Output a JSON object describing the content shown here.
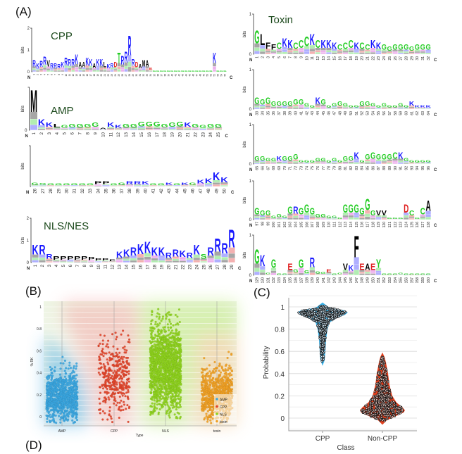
{
  "panel_labels": {
    "A": "(A)",
    "B": "(B)",
    "C": "(C)",
    "D": "(D)"
  },
  "logo_common": {
    "ylabel": "bits",
    "n_label": "N",
    "c_label": "C"
  },
  "letter_colors": {
    "basic": "#1a1aff",
    "acidic": "#e02020",
    "polar": "#22cc22",
    "hydrophobic": "#000000",
    "amide": "#cc22cc"
  },
  "chart_data": [
    {
      "id": "cpp",
      "type": "sequence_logo",
      "title": "CPP",
      "ylim": [
        0,
        2
      ],
      "yticks": [
        "2",
        "1",
        "0"
      ],
      "first_position": 1,
      "letters": "RKRRVRRRKRRRKAAKKAKKLKRDTRRRRDAMAEGGGGGGGGGGGGGGGGGKGGG",
      "heights": [
        0.55,
        0.4,
        0.5,
        0.7,
        0.55,
        0.4,
        0.4,
        0.35,
        0.45,
        0.65,
        0.6,
        0.6,
        0.8,
        0.45,
        0.45,
        0.65,
        0.6,
        0.4,
        0.6,
        0.6,
        0.45,
        0.35,
        0.4,
        0.45,
        0.9,
        0.75,
        0.95,
        1.7,
        0.6,
        0.45,
        0.35,
        0.55,
        0.55,
        0.2,
        0,
        0,
        0,
        0,
        0,
        0,
        0,
        0,
        0,
        0,
        0,
        0,
        0,
        0,
        0,
        0,
        0,
        0.9,
        0,
        0,
        0
      ]
    },
    {
      "id": "amp1",
      "type": "sequence_logo",
      "title": "AMP",
      "ylim": [
        0,
        2
      ],
      "yticks": [
        "0"
      ],
      "first_position": 1,
      "letters": "MKKLGGGGGAKKGGGGGGGGKGGGG",
      "heights": [
        1.9,
        0.5,
        0.35,
        0.3,
        0.25,
        0.3,
        0.3,
        0.3,
        0.35,
        0.1,
        0.35,
        0.25,
        0.3,
        0.3,
        0.4,
        0.4,
        0.4,
        0.3,
        0.35,
        0.4,
        0.35,
        0.3,
        0.25,
        0.3,
        0.3
      ]
    },
    {
      "id": "amp2",
      "type": "sequence_logo",
      "title": "",
      "ylim": [
        0,
        2
      ],
      "yticks": [],
      "first_position": 26,
      "letters": "GGGGGGGGPPGGRRKGGKGKGKKKK",
      "heights": [
        0.2,
        0.18,
        0.15,
        0.15,
        0.15,
        0.15,
        0.15,
        0.15,
        0.25,
        0.25,
        0.15,
        0.2,
        0.25,
        0.25,
        0.25,
        0.15,
        0.15,
        0.2,
        0.15,
        0.2,
        0.2,
        0.35,
        0.4,
        0.7,
        0.45
      ]
    },
    {
      "id": "nls",
      "type": "sequence_logo",
      "title": "NLS/NES",
      "ylim": [
        0,
        2
      ],
      "yticks": [
        "2",
        "1",
        "0"
      ],
      "first_position": 1,
      "letters": "KRRPPPPPPPPPKKRKKKKRRKRKSRRRR",
      "heights": [
        0.8,
        0.8,
        0.4,
        0.3,
        0.3,
        0.3,
        0.3,
        0.3,
        0.25,
        0.2,
        0.2,
        0.15,
        0.5,
        0.6,
        0.7,
        0.85,
        0.95,
        0.7,
        0.7,
        0.45,
        0.6,
        0.55,
        0.45,
        0.8,
        0.4,
        0.7,
        1.1,
        0.9,
        1.5
      ]
    },
    {
      "id": "toxin1",
      "type": "sequence_logo",
      "title": "Toxin",
      "ylim": [
        0,
        1
      ],
      "yticks": [
        "1",
        "0"
      ],
      "first_position": 1,
      "letters": "GLFFCKKCCCKCKKKCCCKCCKKGGGGGGGGG",
      "heights": [
        0.6,
        0.5,
        0.3,
        0.25,
        0.3,
        0.4,
        0.35,
        0.3,
        0.35,
        0.45,
        0.5,
        0.35,
        0.35,
        0.35,
        0.3,
        0.25,
        0.3,
        0.35,
        0.3,
        0.3,
        0.25,
        0.35,
        0.3,
        0.25,
        0.2,
        0.25,
        0.25,
        0.25,
        0.2,
        0.25,
        0.25,
        0.25
      ]
    },
    {
      "id": "toxin2",
      "type": "sequence_logo",
      "title": "",
      "ylim": [
        0,
        1
      ],
      "yticks": [
        "1",
        "0"
      ],
      "first_position": 33,
      "letters": "GGGGGGGGGGGKGGGGGGGGGGGGGGGGKKKK",
      "heights": [
        0.3,
        0.25,
        0.3,
        0.2,
        0.2,
        0.2,
        0.2,
        0.25,
        0.25,
        0.15,
        0.1,
        0.3,
        0.25,
        0.1,
        0.15,
        0.2,
        0.15,
        0.1,
        0.1,
        0.2,
        0.2,
        0.15,
        0.1,
        0.15,
        0.1,
        0.1,
        0.15,
        0.1,
        0.2,
        0.1,
        0.1,
        0.1
      ]
    },
    {
      "id": "toxin3",
      "type": "sequence_logo",
      "title": "",
      "ylim": [
        0,
        1
      ],
      "yticks": [
        "1",
        "0"
      ],
      "first_position": 65,
      "letters": "GGGGKGGGGGGGGGGGGGKGGGGGGCKGGGGG",
      "heights": [
        0.2,
        0.2,
        0.15,
        0.15,
        0.2,
        0.2,
        0.2,
        0.25,
        0.1,
        0.1,
        0.1,
        0.15,
        0.15,
        0.1,
        0.15,
        0.1,
        0.2,
        0.2,
        0.3,
        0.1,
        0.25,
        0.3,
        0.25,
        0.25,
        0.25,
        0.3,
        0.3,
        0.15,
        0.1,
        0.1,
        0.1,
        0.1
      ]
    },
    {
      "id": "toxin4",
      "type": "sequence_logo",
      "title": "",
      "ylim": [
        0,
        1
      ],
      "yticks": [
        "1",
        "0"
      ],
      "first_position": 97,
      "letters": "GGGGGGGRGGGGGGGGGGGGGGVVGGGDCGCA",
      "heights": [
        0.3,
        0.25,
        0.25,
        0.1,
        0.15,
        0.1,
        0.35,
        0.35,
        0.3,
        0.4,
        0.3,
        0.15,
        0.15,
        0.1,
        0.1,
        0.05,
        0.4,
        0.4,
        0.4,
        0.3,
        0.55,
        0.25,
        0.25,
        0.25,
        0.05,
        0.05,
        0.05,
        0.4,
        0.25,
        0.05,
        0.3,
        0.5
      ]
    },
    {
      "id": "toxin5",
      "type": "sequence_logo",
      "title": "",
      "ylim": [
        0,
        1
      ],
      "yticks": [
        "1",
        "0"
      ],
      "first_position": 129,
      "letters": "GKGGGGEGGGRGGEGGVKFEAEYGGGGGGGGG",
      "heights": [
        0.65,
        0.5,
        0.05,
        0.4,
        0.02,
        0.02,
        0.3,
        0.15,
        0.4,
        0.12,
        0.45,
        0.1,
        0.08,
        0.15,
        0.02,
        0.05,
        0.3,
        0.25,
        1.0,
        0.3,
        0.3,
        0.3,
        0.4,
        0.02,
        0.02,
        0.02,
        0.05,
        0.02,
        0.02,
        0.02,
        0.02,
        0.02
      ]
    },
    {
      "id": "rk_scatter",
      "type": "scatter",
      "xlabel": "Type",
      "ylabel": "% RK",
      "categories": [
        "AMP",
        "CPP",
        "NLS",
        "toxin"
      ],
      "colors": [
        "#3aa6e0",
        "#e0442a",
        "#8ed21e",
        "#f0a024"
      ],
      "distributions": [
        {
          "category": "AMP",
          "min": -0.06,
          "max": 0.6,
          "median": 0.18
        },
        {
          "category": "CPP",
          "min": -0.06,
          "max": 1.0,
          "median": 0.35
        },
        {
          "category": "NLS",
          "min": -0.02,
          "max": 1.0,
          "median": 0.45
        },
        {
          "category": "toxin",
          "min": -0.06,
          "max": 0.7,
          "median": 0.2
        }
      ],
      "yticks": [
        "0",
        "0.2",
        "0.4",
        "0.6",
        "0.8",
        "1"
      ],
      "ylim": [
        -0.08,
        1.03
      ],
      "grid": true,
      "legend": "bottom-right",
      "legend_entries": [
        "AMP",
        "CPP",
        "NLS",
        "toxin"
      ]
    },
    {
      "id": "probability_violin",
      "type": "violin",
      "xlabel": "Class",
      "ylabel": "Probability",
      "categories": [
        "CPP",
        "Non-CPP"
      ],
      "colors": [
        "#3ab2ea",
        "#e0401e"
      ],
      "distributions": [
        {
          "category": "CPP",
          "min": 0.47,
          "max": 1.04,
          "mode": 0.95
        },
        {
          "category": "Non-CPP",
          "min": -0.06,
          "max": 0.59,
          "mode": 0.07
        }
      ],
      "yticks": [
        "0",
        "0.2",
        "0.4",
        "0.6",
        "0.8",
        "1"
      ],
      "ylim": [
        -0.1,
        1.1
      ],
      "grid": true
    }
  ]
}
